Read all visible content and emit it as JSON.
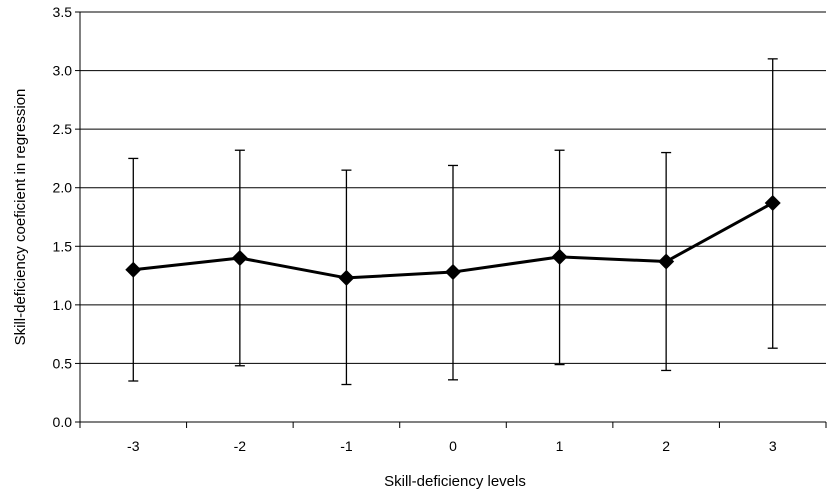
{
  "chart_data": {
    "type": "line",
    "title": "",
    "xlabel": "Skill-deficiency levels",
    "ylabel": "Skill-deficiency coeficient in regression",
    "categories": [
      "-3",
      "-2",
      "-1",
      "0",
      "1",
      "2",
      "3"
    ],
    "series": [
      {
        "values": [
          1.3,
          1.4,
          1.23,
          1.28,
          1.41,
          1.37,
          1.87
        ],
        "error_upper": [
          2.25,
          2.32,
          2.15,
          2.19,
          2.32,
          2.3,
          3.1
        ],
        "error_lower": [
          0.35,
          0.48,
          0.32,
          0.36,
          0.49,
          0.44,
          0.63
        ],
        "marker": "diamond",
        "color": "#000000"
      }
    ],
    "ylim": [
      0,
      3.5
    ],
    "yticks": [
      "0.0",
      "0.5",
      "1.0",
      "1.5",
      "2.0",
      "2.5",
      "3.0",
      "3.5"
    ],
    "grid": "horizontal",
    "legend": "none"
  }
}
